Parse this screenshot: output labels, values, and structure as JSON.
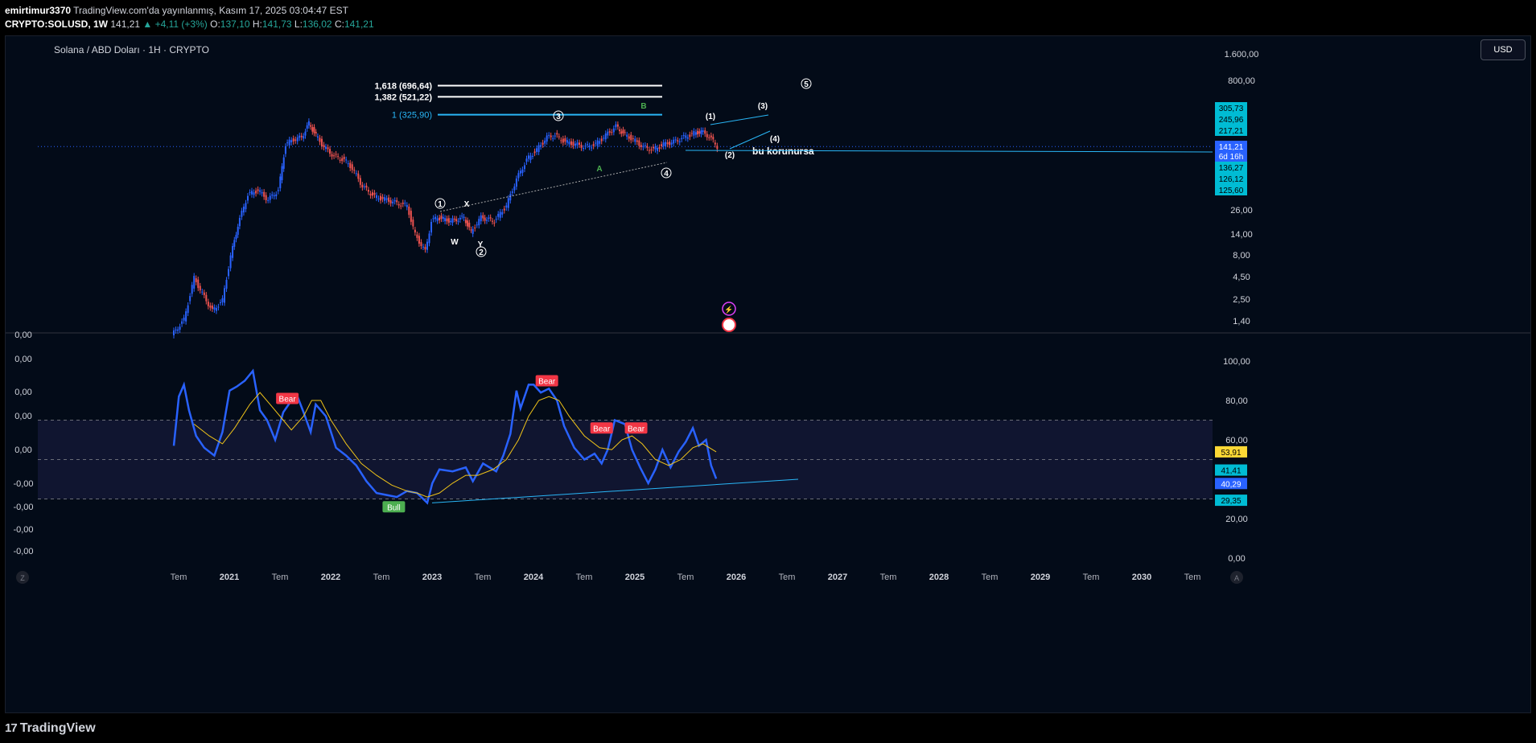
{
  "header": {
    "user": "emirtimur3370",
    "published": "TradingView.com'da yayınlanmış, Kasım 17, 2025 03:04:47 EST",
    "symbol": "CRYPTO:SOLUSD, 1W",
    "price": "141,21",
    "change": "▲ +4,11 (+3%)",
    "o_label": "O:",
    "o_value": "137,10",
    "h_label": "H:",
    "h_value": "141,73",
    "l_label": "L:",
    "l_value": "136,02",
    "c_label": "C:",
    "c_value": "141,21"
  },
  "chart_title": "Solana / ABD Doları · 1H · CRYPTO",
  "currency_button": "USD",
  "footer": {
    "logo": "TradingView",
    "logo_mark": "17",
    "left_button": "Z",
    "right_button": "A"
  },
  "colors": {
    "background": "#030b18",
    "candle_up": "#2962ff",
    "candle_down": "#ef5350",
    "rsi_line": "#2962ff",
    "rsi_ma": "#f0c419",
    "fib_cyan": "#29b6f6",
    "bear_label": "#f23645",
    "bull_label": "#4caf50",
    "price_badge": "#2962ff",
    "cyan_badge": "#00bcd4",
    "yellow_badge": "#fdd835"
  },
  "chart_data": [
    {
      "type": "candlestick",
      "title": "Solana / ABD Doları · 1H · CRYPTO",
      "scale": "log",
      "ylim": [
        1.2,
        1800
      ],
      "y_ticks": [
        "1.600,00",
        "800,00",
        "26,00",
        "14,00",
        "8,00",
        "4,50",
        "2,50",
        "1,40"
      ],
      "x_ticks": [
        "Tem",
        "2021",
        "Tem",
        "2022",
        "Tem",
        "2023",
        "Tem",
        "2024",
        "Tem",
        "2025",
        "Tem",
        "2026",
        "Tem",
        "2027",
        "Tem",
        "2028",
        "Tem",
        "2029",
        "Tem",
        "2030",
        "Tem"
      ],
      "x_range": [
        2020.5,
        2030.5
      ],
      "series": [
        {
          "name": "SOLUSD",
          "points": [
            [
              2020.5,
              1.0
            ],
            [
              2020.62,
              1.5
            ],
            [
              2020.72,
              4.5
            ],
            [
              2020.8,
              3.0
            ],
            [
              2020.9,
              1.9
            ],
            [
              2021.0,
              2.5
            ],
            [
              2021.08,
              8
            ],
            [
              2021.15,
              18
            ],
            [
              2021.25,
              40
            ],
            [
              2021.35,
              45
            ],
            [
              2021.45,
              35
            ],
            [
              2021.55,
              45
            ],
            [
              2021.62,
              150
            ],
            [
              2021.7,
              170
            ],
            [
              2021.78,
              180
            ],
            [
              2021.85,
              260
            ],
            [
              2021.92,
              190
            ],
            [
              2022.0,
              140
            ],
            [
              2022.1,
              110
            ],
            [
              2022.2,
              100
            ],
            [
              2022.28,
              80
            ],
            [
              2022.38,
              50
            ],
            [
              2022.5,
              38
            ],
            [
              2022.62,
              35
            ],
            [
              2022.72,
              32
            ],
            [
              2022.82,
              30
            ],
            [
              2022.9,
              14
            ],
            [
              2023.0,
              9
            ],
            [
              2023.06,
              20
            ],
            [
              2023.12,
              22
            ],
            [
              2023.25,
              20
            ],
            [
              2023.38,
              22
            ],
            [
              2023.45,
              15
            ],
            [
              2023.55,
              22
            ],
            [
              2023.68,
              20
            ],
            [
              2023.8,
              30
            ],
            [
              2023.9,
              60
            ],
            [
              2024.0,
              100
            ],
            [
              2024.1,
              130
            ],
            [
              2024.2,
              180
            ],
            [
              2024.28,
              190
            ],
            [
              2024.38,
              160
            ],
            [
              2024.48,
              150
            ],
            [
              2024.58,
              140
            ],
            [
              2024.68,
              150
            ],
            [
              2024.78,
              190
            ],
            [
              2024.88,
              240
            ],
            [
              2024.95,
              200
            ],
            [
              2025.05,
              170
            ],
            [
              2025.15,
              140
            ],
            [
              2025.25,
              130
            ],
            [
              2025.35,
              150
            ],
            [
              2025.45,
              160
            ],
            [
              2025.55,
              180
            ],
            [
              2025.65,
              200
            ],
            [
              2025.72,
              210
            ],
            [
              2025.8,
              185
            ],
            [
              2025.88,
              141.21
            ]
          ]
        }
      ],
      "fib_levels": [
        {
          "label": "1,618 (696,64)",
          "value": 696.64
        },
        {
          "label": "1,382 (521,22)",
          "value": 521.22
        },
        {
          "label": "1 (325,90)",
          "value": 325.9
        }
      ],
      "annotations": [
        "1",
        "2",
        "3",
        "4",
        "5",
        "X",
        "W",
        "Y",
        "A",
        "B",
        "(1)",
        "(2)",
        "(3)",
        "(4)",
        "bu korunursa"
      ],
      "price_labels": [
        "305,73",
        "245,96",
        "217,21",
        "141,21",
        "6d 16h",
        "136,27",
        "126,12",
        "125,60"
      ]
    },
    {
      "type": "line",
      "title": "",
      "ylim": [
        0,
        100
      ],
      "y_ticks": [
        "100,00",
        "80,00",
        "60,00",
        "20,00",
        "0,00"
      ],
      "left_ticks": [
        "0,00",
        "0,00",
        "0,00",
        "0,00",
        "0,00",
        "-0,00",
        "-0,00",
        "-0,00",
        "-0,00"
      ],
      "bands": [
        70,
        50,
        30
      ],
      "series": [
        {
          "name": "",
          "points": [
            [
              2020.5,
              57
            ],
            [
              2020.55,
              82
            ],
            [
              2020.6,
              88
            ],
            [
              2020.65,
              75
            ],
            [
              2020.72,
              62
            ],
            [
              2020.8,
              56
            ],
            [
              2020.9,
              52
            ],
            [
              2020.98,
              64
            ],
            [
              2021.05,
              85
            ],
            [
              2021.12,
              87
            ],
            [
              2021.2,
              90
            ],
            [
              2021.28,
              95
            ],
            [
              2021.35,
              75
            ],
            [
              2021.42,
              70
            ],
            [
              2021.5,
              60
            ],
            [
              2021.58,
              74
            ],
            [
              2021.66,
              80
            ],
            [
              2021.72,
              82
            ],
            [
              2021.78,
              74
            ],
            [
              2021.85,
              64
            ],
            [
              2021.9,
              78
            ],
            [
              2022.0,
              72
            ],
            [
              2022.1,
              56
            ],
            [
              2022.2,
              52
            ],
            [
              2022.3,
              47
            ],
            [
              2022.4,
              39
            ],
            [
              2022.5,
              33
            ],
            [
              2022.6,
              32
            ],
            [
              2022.7,
              31
            ],
            [
              2022.8,
              34
            ],
            [
              2022.9,
              33
            ],
            [
              2023.0,
              28
            ],
            [
              2023.05,
              38
            ],
            [
              2023.12,
              45
            ],
            [
              2023.25,
              44
            ],
            [
              2023.38,
              46
            ],
            [
              2023.45,
              39
            ],
            [
              2023.55,
              48
            ],
            [
              2023.68,
              44
            ],
            [
              2023.75,
              52
            ],
            [
              2023.82,
              63
            ],
            [
              2023.88,
              85
            ],
            [
              2023.92,
              76
            ],
            [
              2024.0,
              88
            ],
            [
              2024.05,
              88
            ],
            [
              2024.12,
              84
            ],
            [
              2024.2,
              86
            ],
            [
              2024.28,
              80
            ],
            [
              2024.35,
              67
            ],
            [
              2024.45,
              56
            ],
            [
              2024.55,
              50
            ],
            [
              2024.65,
              53
            ],
            [
              2024.72,
              48
            ],
            [
              2024.78,
              55
            ],
            [
              2024.85,
              70
            ],
            [
              2024.95,
              68
            ],
            [
              2025.02,
              55
            ],
            [
              2025.1,
              46
            ],
            [
              2025.18,
              38
            ],
            [
              2025.25,
              45
            ],
            [
              2025.32,
              55
            ],
            [
              2025.4,
              46
            ],
            [
              2025.48,
              54
            ],
            [
              2025.55,
              59
            ],
            [
              2025.62,
              66
            ],
            [
              2025.68,
              57
            ],
            [
              2025.75,
              60
            ],
            [
              2025.8,
              47
            ],
            [
              2025.85,
              40.29
            ]
          ]
        },
        {
          "name": "",
          "points": [
            [
              2020.7,
              68
            ],
            [
              2020.85,
              62
            ],
            [
              2020.98,
              58
            ],
            [
              2021.1,
              66
            ],
            [
              2021.25,
              78
            ],
            [
              2021.35,
              84
            ],
            [
              2021.45,
              78
            ],
            [
              2021.58,
              70
            ],
            [
              2021.66,
              65
            ],
            [
              2021.78,
              72
            ],
            [
              2021.86,
              80
            ],
            [
              2021.95,
              80
            ],
            [
              2022.05,
              70
            ],
            [
              2022.2,
              58
            ],
            [
              2022.35,
              48
            ],
            [
              2022.5,
              42
            ],
            [
              2022.65,
              37
            ],
            [
              2022.8,
              34
            ],
            [
              2022.9,
              33
            ],
            [
              2023.0,
              31
            ],
            [
              2023.12,
              33
            ],
            [
              2023.25,
              38
            ],
            [
              2023.38,
              42
            ],
            [
              2023.5,
              42
            ],
            [
              2023.65,
              45
            ],
            [
              2023.78,
              50
            ],
            [
              2023.9,
              60
            ],
            [
              2024.0,
              72
            ],
            [
              2024.1,
              80
            ],
            [
              2024.2,
              82
            ],
            [
              2024.3,
              80
            ],
            [
              2024.4,
              72
            ],
            [
              2024.55,
              62
            ],
            [
              2024.7,
              56
            ],
            [
              2024.82,
              55
            ],
            [
              2024.92,
              60
            ],
            [
              2025.02,
              62
            ],
            [
              2025.12,
              58
            ],
            [
              2025.25,
              50
            ],
            [
              2025.38,
              47
            ],
            [
              2025.5,
              50
            ],
            [
              2025.62,
              56
            ],
            [
              2025.72,
              58
            ],
            [
              2025.85,
              53.91
            ]
          ]
        }
      ],
      "labels": [
        {
          "text": "Bear",
          "x": 2021.62,
          "y": 81
        },
        {
          "text": "Bear",
          "x": 2024.18,
          "y": 90
        },
        {
          "text": "Bear",
          "x": 2024.72,
          "y": 66
        },
        {
          "text": "Bear",
          "x": 2025.06,
          "y": 66
        },
        {
          "text": "Bull",
          "x": 2022.67,
          "y": 26
        }
      ],
      "badges": [
        "53,91",
        "41,41",
        "40,29",
        "29,35"
      ]
    }
  ]
}
